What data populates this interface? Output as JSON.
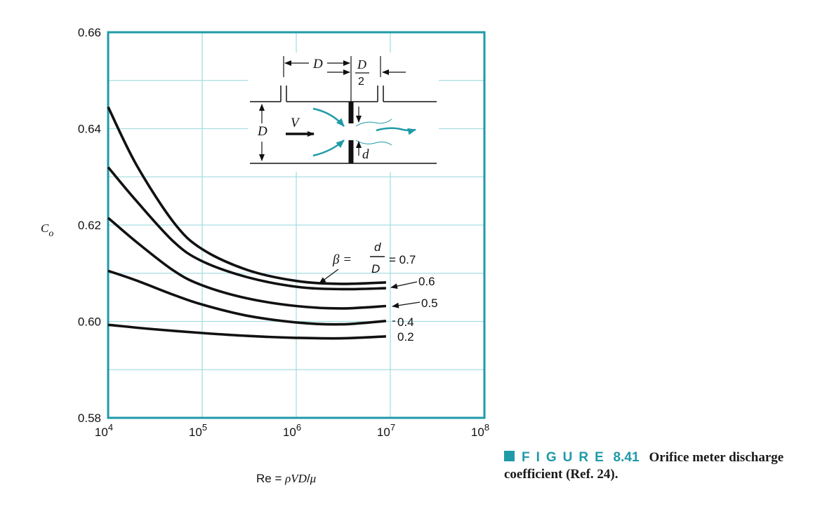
{
  "chart_data": {
    "type": "line",
    "x_scale": "log",
    "xlim": [
      10000,
      100000000
    ],
    "ylim": [
      0.58,
      0.66
    ],
    "grid": true,
    "xlabel": "Re = ρVD/μ",
    "ylabel": "C_o",
    "x_ticks": [
      {
        "base": "10",
        "exp": "4",
        "value": 10000
      },
      {
        "base": "10",
        "exp": "5",
        "value": 100000
      },
      {
        "base": "10",
        "exp": "6",
        "value": 1000000
      },
      {
        "base": "10",
        "exp": "7",
        "value": 10000000
      },
      {
        "base": "10",
        "exp": "8",
        "value": 100000000
      }
    ],
    "y_ticks": [
      "0.58",
      "0.60",
      "0.62",
      "0.64",
      "0.66"
    ],
    "y_tick_values": [
      0.58,
      0.6,
      0.62,
      0.64,
      0.66
    ],
    "series": [
      {
        "name": "0.7",
        "x": [
          10000,
          20000,
          50000,
          100000,
          300000,
          1000000,
          3000000,
          9000000
        ],
        "values": [
          0.6445,
          0.6325,
          0.6205,
          0.615,
          0.6107,
          0.6084,
          0.6078,
          0.6081
        ]
      },
      {
        "name": "0.6",
        "x": [
          10000,
          20000,
          50000,
          100000,
          300000,
          1000000,
          3000000,
          9000000
        ],
        "values": [
          0.632,
          0.625,
          0.6165,
          0.6125,
          0.6092,
          0.6072,
          0.6067,
          0.6069
        ]
      },
      {
        "name": "0.5",
        "x": [
          10000,
          20000,
          50000,
          100000,
          300000,
          1000000,
          3000000,
          9000000
        ],
        "values": [
          0.6215,
          0.6165,
          0.6105,
          0.6075,
          0.6048,
          0.6032,
          0.6027,
          0.6032
        ]
      },
      {
        "name": "0.4",
        "x": [
          10000,
          20000,
          50000,
          100000,
          300000,
          1000000,
          3000000,
          9000000
        ],
        "values": [
          0.6105,
          0.6085,
          0.6055,
          0.6035,
          0.6012,
          0.5998,
          0.5994,
          0.6001
        ]
      },
      {
        "name": "0.2",
        "x": [
          10000,
          30000,
          100000,
          300000,
          1000000,
          3000000,
          9000000
        ],
        "values": [
          0.5993,
          0.5984,
          0.5976,
          0.597,
          0.5966,
          0.5965,
          0.5969
        ]
      }
    ],
    "annotations": {
      "beta_prefix": "β =",
      "beta_num": "d",
      "beta_den": "D",
      "beta_value": "= 0.7",
      "labels": [
        "0.6",
        "0.5",
        "0.4",
        "0.2"
      ]
    },
    "inset": {
      "label_D_top": "D",
      "label_D_half_num": "D",
      "label_D_half_den": "2",
      "label_V": "V",
      "label_D_left": "D",
      "label_d": "d"
    },
    "colors": {
      "frame": "#1f9aa8",
      "grid": "#a9dde2",
      "curve": "#111111",
      "accent": "#1f9aa8"
    }
  },
  "caption": {
    "word": "FIGURE",
    "number": "8.41",
    "text": "Orifice meter discharge coefficient (Ref. 24)."
  }
}
